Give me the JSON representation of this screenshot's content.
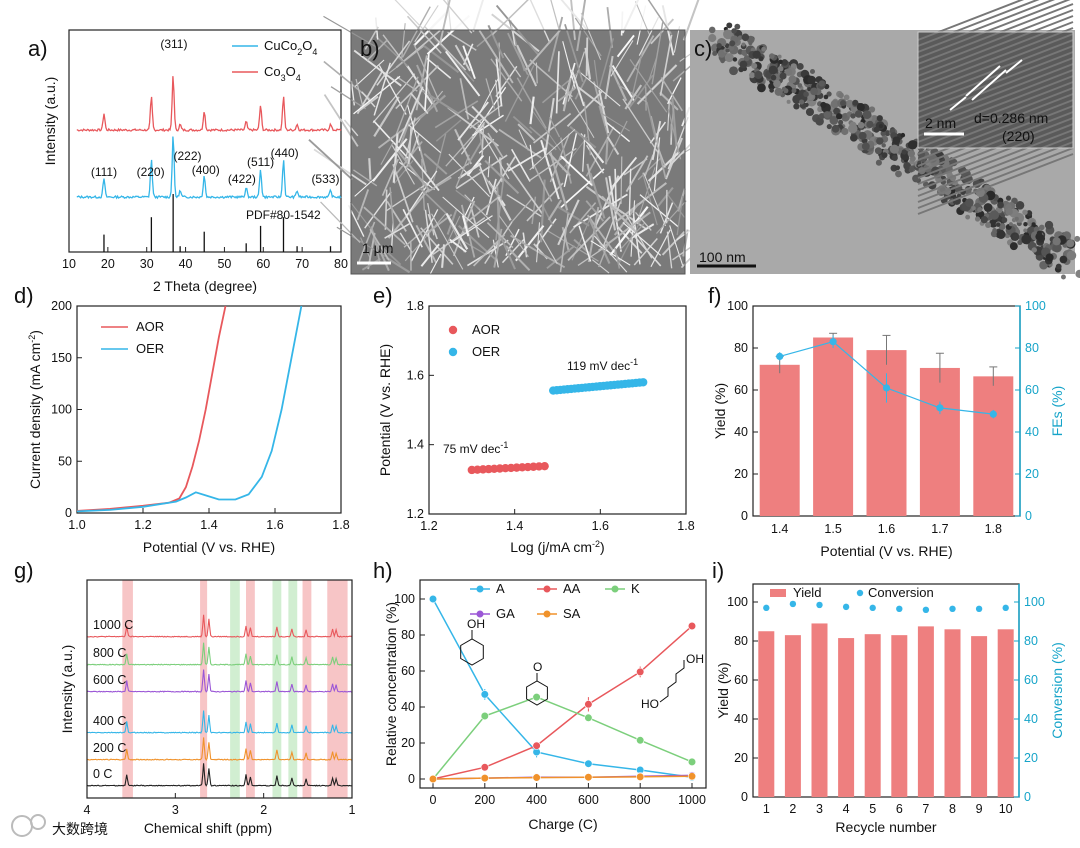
{
  "colors": {
    "red": "#e8585c",
    "blue": "#35b6e8",
    "green": "#7ccf7c",
    "purple": "#9b57d6",
    "orange": "#f0922b",
    "cyan_axis": "#16a4c9",
    "bar": "#ee7f7f",
    "black": "#222222"
  },
  "panel_labels": [
    "a)",
    "b)",
    "c)",
    "d)",
    "e)",
    "f)",
    "g)",
    "h)",
    "i)"
  ],
  "images": {
    "b": {
      "scale_bar": "1 μm",
      "alt": "SEM nanowire array"
    },
    "c": {
      "scale_bar": "100 nm",
      "inset_scale": "2 nm",
      "d_spacing": "d=0.286 nm",
      "plane": "(220)"
    }
  },
  "chart_data": [
    {
      "id": "a",
      "type": "line",
      "xlabel": "2 Theta (degree)",
      "ylabel": "Intensity (a.u.)",
      "xlim": [
        10,
        80
      ],
      "xticks": [
        10,
        20,
        30,
        40,
        50,
        60,
        70,
        80
      ],
      "legend": [
        {
          "name": "CuCo",
          "sub": "2",
          "name2": "O",
          "sub2": "4",
          "color": "blue"
        },
        {
          "name": "Co",
          "sub": "3",
          "name2": "O",
          "sub2": "4",
          "color": "red"
        }
      ],
      "ref_label": "PDF#80-1542",
      "peaks": [
        {
          "x": 19,
          "h": 0.3
        },
        {
          "x": 31.2,
          "h": 0.6
        },
        {
          "x": 36.8,
          "h": 1.0
        },
        {
          "x": 38.6,
          "h": 0.1
        },
        {
          "x": 44.8,
          "h": 0.35
        },
        {
          "x": 55.6,
          "h": 0.15
        },
        {
          "x": 59.3,
          "h": 0.45
        },
        {
          "x": 65.2,
          "h": 0.6
        },
        {
          "x": 68.7,
          "h": 0.1
        },
        {
          "x": 77.3,
          "h": 0.1
        }
      ],
      "annotations": [
        {
          "text": "(311)",
          "x": 37,
          "row": "top"
        },
        {
          "text": "(111)",
          "x": 19,
          "row": "low"
        },
        {
          "text": "(220)",
          "x": 31,
          "row": "low"
        },
        {
          "text": "(222)",
          "x": 40.5,
          "row": "mid"
        },
        {
          "text": "(400)",
          "x": 45.2,
          "row": "low2"
        },
        {
          "text": "(422)",
          "x": 54.5,
          "row": "low3"
        },
        {
          "text": "(511)",
          "x": 59.3,
          "row": "low4"
        },
        {
          "text": "(440)",
          "x": 65.5,
          "row": "mid2"
        },
        {
          "text": "(533)",
          "x": 76,
          "row": "low3"
        }
      ]
    },
    {
      "id": "d",
      "type": "line",
      "xlabel": "Potential (V vs. RHE)",
      "ylabel": "Current density (mA cm",
      "ylabel_sup": "-2",
      "ylabel_end": ")",
      "xlim": [
        1.0,
        1.8
      ],
      "ylim": [
        0,
        200
      ],
      "xticks": [
        "1.0",
        "1.2",
        "1.4",
        "1.6",
        "1.8"
      ],
      "yticks": [
        0,
        50,
        100,
        150,
        200
      ],
      "series": [
        {
          "name": "AOR",
          "color": "red",
          "points": [
            [
              1.0,
              2
            ],
            [
              1.1,
              4
            ],
            [
              1.2,
              7
            ],
            [
              1.28,
              10
            ],
            [
              1.31,
              14
            ],
            [
              1.33,
              25
            ],
            [
              1.35,
              45
            ],
            [
              1.37,
              70
            ],
            [
              1.39,
              100
            ],
            [
              1.41,
              135
            ],
            [
              1.43,
              170
            ],
            [
              1.45,
              200
            ]
          ]
        },
        {
          "name": "OER",
          "color": "blue",
          "points": [
            [
              1.0,
              1.5
            ],
            [
              1.1,
              3
            ],
            [
              1.2,
              6
            ],
            [
              1.3,
              11
            ],
            [
              1.33,
              15
            ],
            [
              1.36,
              20
            ],
            [
              1.39,
              17
            ],
            [
              1.43,
              13
            ],
            [
              1.48,
              13
            ],
            [
              1.52,
              18
            ],
            [
              1.56,
              35
            ],
            [
              1.59,
              60
            ],
            [
              1.62,
              100
            ],
            [
              1.65,
              150
            ],
            [
              1.68,
              200
            ]
          ]
        }
      ]
    },
    {
      "id": "e",
      "type": "scatter",
      "xlabel": "Log (j/mA cm",
      "xlabel_sup": "-2",
      "xlabel_end": ")",
      "ylabel": "Potential (V vs. RHE)",
      "xlim": [
        1.2,
        1.8
      ],
      "ylim": [
        1.2,
        1.8
      ],
      "xticks": [
        "1.2",
        "1.4",
        "1.6",
        "1.8"
      ],
      "yticks": [
        "1.2",
        "1.4",
        "1.6",
        "1.8"
      ],
      "series": [
        {
          "name": "AOR",
          "color": "red",
          "x_range": [
            1.3,
            1.47
          ],
          "y_range": [
            1.327,
            1.338
          ],
          "n": 14,
          "tafel": "75 mV dec",
          "tafel_sup": "-1"
        },
        {
          "name": "OER",
          "color": "blue",
          "x_range": [
            1.49,
            1.7
          ],
          "y_range": [
            1.556,
            1.58
          ],
          "n": 26,
          "tafel": "119 mV dec",
          "tafel_sup": "-1"
        }
      ]
    },
    {
      "id": "f",
      "type": "bar",
      "xlabel": "Potential (V vs. RHE)",
      "ylabel": "Yield (%)",
      "ylabel_right": "FEs (%)",
      "categories": [
        "1.4",
        "1.5",
        "1.6",
        "1.7",
        "1.8"
      ],
      "ylim": [
        0,
        100
      ],
      "yticks": [
        0,
        20,
        40,
        60,
        80,
        100
      ],
      "yield": [
        72,
        85,
        79,
        70.5,
        66.5
      ],
      "yield_err": [
        4,
        2,
        7,
        7,
        4.5
      ],
      "fe": [
        76,
        83,
        61,
        51.5,
        48.5
      ],
      "fe_err": [
        2,
        3,
        7,
        3,
        2
      ]
    },
    {
      "id": "g",
      "type": "line",
      "xlabel": "Chemical shift (ppm)",
      "ylabel": "Intensity (a.u.)",
      "xlim": [
        4,
        1
      ],
      "xticks": [
        "4",
        "3",
        "2",
        "1"
      ],
      "traces": [
        {
          "label": "1000 C",
          "color": "red"
        },
        {
          "label": "800 C",
          "color": "green"
        },
        {
          "label": "600 C",
          "color": "purple"
        },
        {
          "label": "400 C",
          "color": "blue"
        },
        {
          "label": "200 C",
          "color": "orange"
        },
        {
          "label": "0 C",
          "color": "black"
        }
      ],
      "bands": [
        {
          "from": 3.6,
          "to": 3.48,
          "color": "red"
        },
        {
          "from": 2.72,
          "to": 2.64,
          "color": "red"
        },
        {
          "from": 2.38,
          "to": 2.27,
          "color": "green"
        },
        {
          "from": 2.2,
          "to": 2.1,
          "color": "red"
        },
        {
          "from": 1.9,
          "to": 1.8,
          "color": "green"
        },
        {
          "from": 1.72,
          "to": 1.62,
          "color": "green"
        },
        {
          "from": 1.56,
          "to": 1.46,
          "color": "red"
        },
        {
          "from": 1.28,
          "to": 1.05,
          "color": "red"
        }
      ]
    },
    {
      "id": "h",
      "type": "line",
      "xlabel": "Charge (C)",
      "ylabel": "Relative concentration (%)",
      "xlim": [
        0,
        1000
      ],
      "ylim": [
        0,
        100
      ],
      "xticks": [
        0,
        200,
        400,
        600,
        800,
        1000
      ],
      "yticks": [
        0,
        20,
        40,
        60,
        80,
        100
      ],
      "series": [
        {
          "name": "A",
          "color": "blue",
          "x": [
            0,
            200,
            400,
            600,
            800,
            1000
          ],
          "values": [
            100,
            47,
            15,
            8.5,
            5,
            1
          ],
          "err": [
            0,
            3,
            3,
            2,
            2,
            0
          ]
        },
        {
          "name": "AA",
          "color": "red",
          "x": [
            0,
            200,
            400,
            600,
            800,
            1000
          ],
          "values": [
            0,
            6.5,
            18.5,
            41.5,
            59.5,
            85
          ],
          "err": [
            0,
            0,
            0,
            4,
            3,
            2
          ]
        },
        {
          "name": "K",
          "color": "green",
          "x": [
            0,
            200,
            400,
            600,
            800,
            1000
          ],
          "values": [
            0,
            35,
            45.5,
            34,
            21.5,
            9.5
          ],
          "err": [
            0,
            2,
            2,
            2,
            0,
            0
          ]
        },
        {
          "name": "GA",
          "color": "purple",
          "x": [
            0,
            200,
            400,
            600,
            800,
            1000
          ],
          "values": [
            0,
            0.5,
            1,
            1,
            1.5,
            2
          ],
          "err": [
            0,
            0,
            0,
            0,
            0,
            0
          ]
        },
        {
          "name": "SA",
          "color": "orange",
          "x": [
            0,
            200,
            400,
            600,
            800,
            1000
          ],
          "values": [
            0,
            0.5,
            0.8,
            1,
            1.2,
            1.5
          ],
          "err": [
            0,
            0,
            0,
            0,
            0,
            0
          ]
        }
      ],
      "mol_labels": {
        "oh": "OH",
        "o": "O",
        "cooh": "OH",
        "hooc": "HO"
      }
    },
    {
      "id": "i",
      "type": "bar",
      "xlabel": "Recycle number",
      "ylabel": "Yield (%)",
      "ylabel_right": "Conversion (%)",
      "categories": [
        "1",
        "2",
        "3",
        "4",
        "5",
        "6",
        "7",
        "8",
        "9",
        "10"
      ],
      "ylim": [
        0,
        100
      ],
      "yticks": [
        0,
        20,
        40,
        60,
        80,
        100
      ],
      "yield": [
        85,
        83,
        89,
        81.5,
        83.5,
        83,
        87.5,
        86,
        82.5,
        86
      ],
      "conversion": [
        97,
        99,
        98.5,
        97.5,
        97,
        96.5,
        96,
        96.5,
        96.5,
        97
      ],
      "legend": [
        "Yield",
        "Conversion"
      ]
    }
  ],
  "watermark": "大数跨境"
}
